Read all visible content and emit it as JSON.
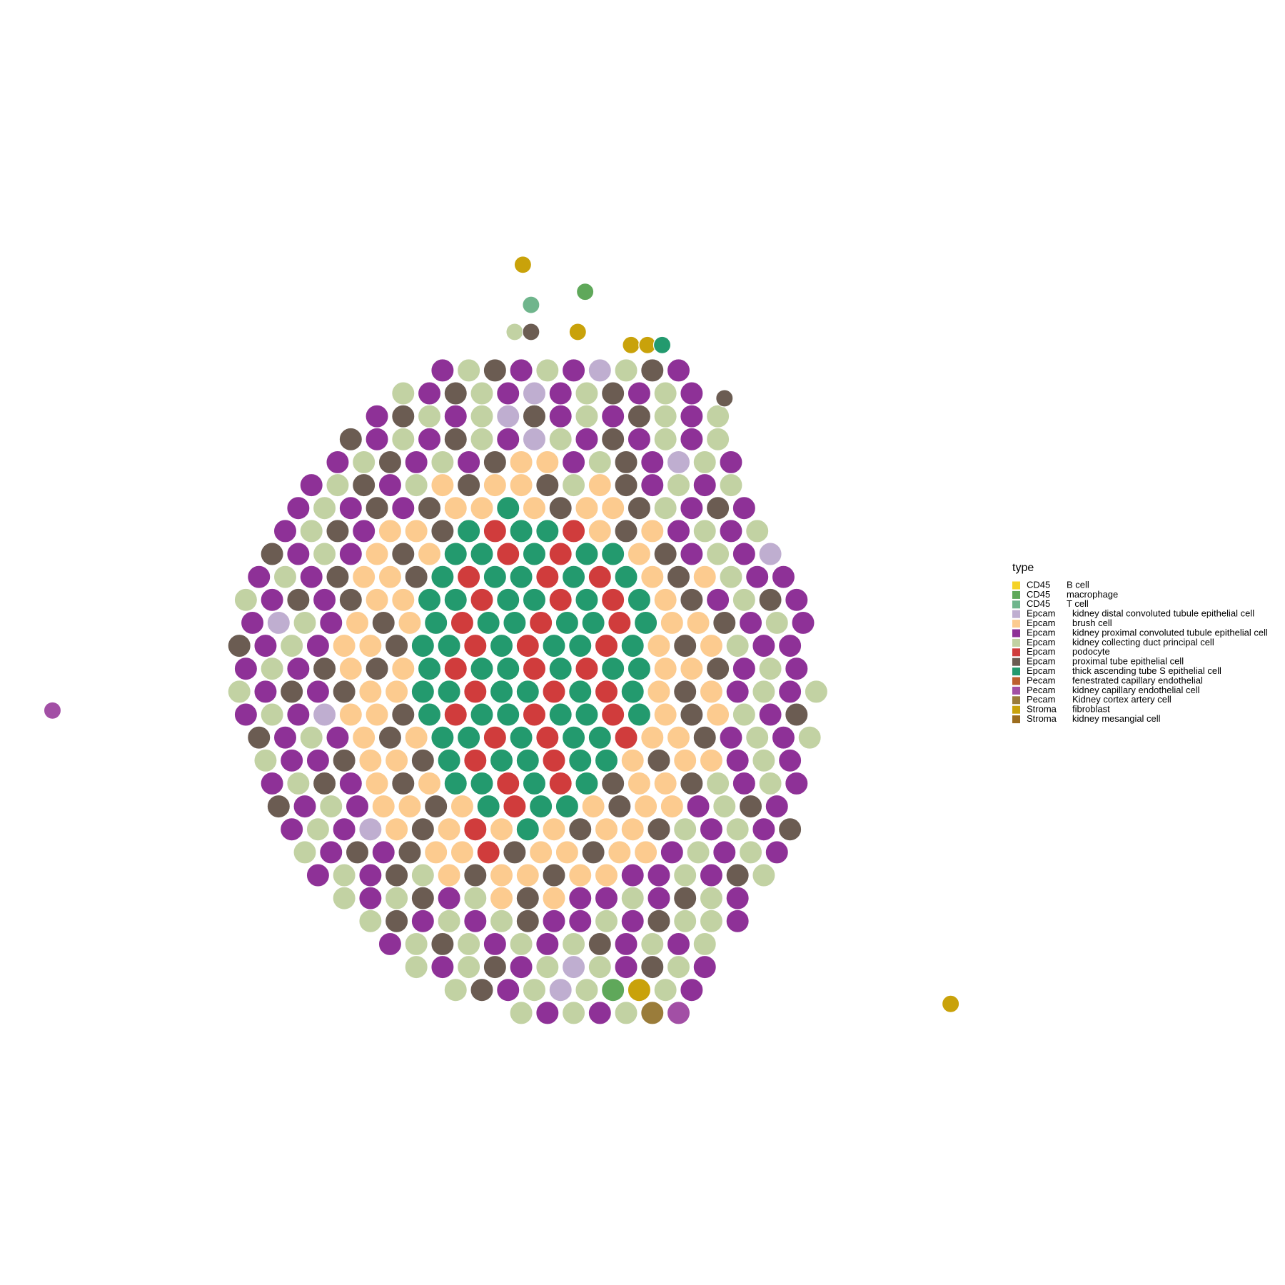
{
  "chart_data": {
    "type": "scatterpie",
    "legend_title": "type",
    "legend_position": "right",
    "types": [
      {
        "group": "CD45",
        "name": "B cell",
        "color": "#f5d327"
      },
      {
        "group": "CD45",
        "name": "macrophage",
        "color": "#5fa85a"
      },
      {
        "group": "CD45",
        "name": "T cell",
        "color": "#6fb58c"
      },
      {
        "group": "Epcam",
        "name": "kidney distal convoluted tubule epithelial cell",
        "color": "#bfaed0"
      },
      {
        "group": "Epcam",
        "name": "brush cell",
        "color": "#fccb8f"
      },
      {
        "group": "Epcam",
        "name": "kidney proximal convoluted tubule epithelial cell",
        "color": "#8e3197"
      },
      {
        "group": "Epcam",
        "name": "kidney collecting duct principal cell",
        "color": "#c2d2a3"
      },
      {
        "group": "Epcam",
        "name": "podocyte",
        "color": "#d03c3c"
      },
      {
        "group": "Epcam",
        "name": "proximal tube epithelial cell",
        "color": "#6b5c52"
      },
      {
        "group": "Epcam",
        "name": "thick ascending tube S epithelial cell",
        "color": "#239a6e"
      },
      {
        "group": "Pecam",
        "name": "fenestrated capillary endothelial",
        "color": "#bd5f2e"
      },
      {
        "group": "Pecam",
        "name": "kidney capillary endothelial cell",
        "color": "#a24fa5"
      },
      {
        "group": "Pecam",
        "name": "Kidney cortex artery cell",
        "color": "#9a7c3a"
      },
      {
        "group": "Stroma",
        "name": "fibroblast",
        "color": "#c9a20a"
      },
      {
        "group": "Stroma",
        "name": "kidney mesangial cell",
        "color": "#9c6d1e"
      }
    ],
    "spacing": 32,
    "rows": [
      {
        "y": 452,
        "x0": 540,
        "types": [
          5,
          6,
          8,
          5,
          6,
          5,
          3,
          6,
          8,
          5
        ]
      },
      {
        "y": 480,
        "x0": 492,
        "types": [
          6,
          5,
          8,
          6,
          5,
          3,
          5,
          6,
          8,
          5,
          6,
          5
        ]
      },
      {
        "y": 508,
        "x0": 460,
        "types": [
          5,
          8,
          6,
          5,
          6,
          3,
          8,
          5,
          6,
          5,
          8,
          6,
          5,
          6
        ]
      },
      {
        "y": 536,
        "x0": 428,
        "types": [
          8,
          5,
          6,
          5,
          8,
          6,
          5,
          3,
          6,
          5,
          8,
          5,
          6,
          5,
          6
        ]
      },
      {
        "y": 564,
        "x0": 412,
        "types": [
          5,
          6,
          8,
          5,
          6,
          5,
          8,
          4,
          4,
          5,
          6,
          8,
          5,
          3,
          6,
          5
        ]
      },
      {
        "y": 592,
        "x0": 380,
        "types": [
          5,
          6,
          8,
          5,
          6,
          4,
          8,
          4,
          4,
          8,
          6,
          4,
          8,
          5,
          6,
          5,
          6
        ]
      },
      {
        "y": 620,
        "x0": 364,
        "types": [
          5,
          6,
          5,
          8,
          5,
          8,
          4,
          4,
          9,
          4,
          8,
          4,
          4,
          8,
          6,
          5,
          8,
          5
        ]
      },
      {
        "y": 648,
        "x0": 348,
        "types": [
          5,
          6,
          8,
          5,
          4,
          4,
          8,
          9,
          7,
          9,
          9,
          7,
          4,
          8,
          4,
          5,
          6,
          5,
          6
        ]
      },
      {
        "y": 676,
        "x0": 332,
        "types": [
          8,
          5,
          6,
          5,
          4,
          8,
          4,
          9,
          9,
          7,
          9,
          7,
          9,
          9,
          4,
          8,
          5,
          6,
          5,
          3
        ]
      },
      {
        "y": 704,
        "x0": 316,
        "types": [
          5,
          6,
          5,
          8,
          4,
          4,
          8,
          9,
          7,
          9,
          9,
          7,
          9,
          7,
          9,
          4,
          8,
          4,
          6,
          5,
          5
        ]
      },
      {
        "y": 732,
        "x0": 300,
        "types": [
          6,
          5,
          8,
          5,
          8,
          4,
          4,
          9,
          9,
          7,
          9,
          9,
          7,
          9,
          7,
          9,
          4,
          8,
          5,
          6,
          8,
          5
        ]
      },
      {
        "y": 760,
        "x0": 308,
        "types": [
          5,
          3,
          6,
          5,
          4,
          8,
          4,
          9,
          7,
          9,
          9,
          7,
          9,
          9,
          7,
          9,
          4,
          4,
          8,
          5,
          6,
          5
        ]
      },
      {
        "y": 788,
        "x0": 292,
        "types": [
          8,
          5,
          6,
          5,
          4,
          4,
          8,
          9,
          9,
          7,
          9,
          7,
          9,
          9,
          7,
          9,
          4,
          8,
          4,
          6,
          5,
          5
        ]
      },
      {
        "y": 816,
        "x0": 300,
        "types": [
          5,
          6,
          5,
          8,
          4,
          8,
          4,
          9,
          7,
          9,
          9,
          7,
          9,
          7,
          9,
          9,
          4,
          4,
          8,
          5,
          6,
          5
        ]
      },
      {
        "y": 844,
        "x0": 292,
        "types": [
          6,
          5,
          8,
          5,
          8,
          4,
          4,
          9,
          9,
          7,
          9,
          9,
          7,
          9,
          7,
          9,
          4,
          8,
          4,
          5,
          6,
          5,
          6
        ]
      },
      {
        "y": 872,
        "x0": 300,
        "types": [
          5,
          6,
          5,
          3,
          4,
          4,
          8,
          9,
          7,
          9,
          9,
          7,
          9,
          9,
          7,
          9,
          4,
          8,
          4,
          6,
          5,
          8
        ]
      },
      {
        "y": 900,
        "x0": 316,
        "types": [
          8,
          5,
          6,
          5,
          4,
          8,
          4,
          9,
          9,
          7,
          9,
          7,
          9,
          9,
          7,
          4,
          4,
          8,
          5,
          6,
          5,
          6
        ]
      },
      {
        "y": 928,
        "x0": 324,
        "types": [
          6,
          5,
          5,
          8,
          4,
          4,
          8,
          9,
          7,
          9,
          9,
          7,
          9,
          9,
          4,
          8,
          4,
          4,
          5,
          6,
          5
        ]
      },
      {
        "y": 956,
        "x0": 332,
        "types": [
          5,
          6,
          8,
          5,
          4,
          8,
          4,
          9,
          9,
          7,
          9,
          7,
          9,
          8,
          4,
          4,
          8,
          6,
          5,
          6,
          5
        ]
      },
      {
        "y": 984,
        "x0": 340,
        "types": [
          8,
          5,
          6,
          5,
          4,
          4,
          8,
          4,
          9,
          7,
          9,
          9,
          4,
          8,
          4,
          4,
          5,
          6,
          8,
          5
        ]
      },
      {
        "y": 1012,
        "x0": 356,
        "types": [
          5,
          6,
          5,
          3,
          4,
          8,
          4,
          7,
          4,
          9,
          4,
          8,
          4,
          4,
          8,
          6,
          5,
          6,
          5,
          8
        ]
      },
      {
        "y": 1040,
        "x0": 372,
        "types": [
          6,
          5,
          8,
          5,
          8,
          4,
          4,
          7,
          8,
          4,
          4,
          8,
          4,
          4,
          5,
          6,
          5,
          6,
          5
        ]
      },
      {
        "y": 1068,
        "x0": 388,
        "types": [
          5,
          6,
          5,
          8,
          6,
          4,
          8,
          4,
          4,
          8,
          4,
          4,
          5,
          5,
          6,
          5,
          8,
          6
        ]
      },
      {
        "y": 1096,
        "x0": 420,
        "types": [
          6,
          5,
          6,
          8,
          5,
          6,
          4,
          8,
          4,
          5,
          5,
          6,
          5,
          8,
          6,
          5
        ]
      },
      {
        "y": 1124,
        "x0": 452,
        "types": [
          6,
          8,
          5,
          6,
          5,
          6,
          8,
          5,
          5,
          6,
          5,
          8,
          6,
          6,
          5
        ]
      },
      {
        "y": 1152,
        "x0": 476,
        "types": [
          5,
          6,
          8,
          6,
          5,
          6,
          5,
          6,
          8,
          5,
          6,
          5,
          6
        ]
      },
      {
        "y": 1180,
        "x0": 508,
        "types": [
          6,
          5,
          6,
          8,
          5,
          6,
          3,
          6,
          5,
          8,
          6,
          5
        ]
      },
      {
        "y": 1208,
        "x0": 556,
        "types": [
          6,
          8,
          5,
          6,
          3,
          6,
          1,
          13,
          6,
          5
        ]
      },
      {
        "y": 1236,
        "x0": 636,
        "types": [
          6,
          5,
          6,
          5,
          6,
          12,
          11
        ]
      }
    ],
    "extras": {
      "x": [
        64,
        1160,
        638,
        648,
        714,
        628,
        648,
        705,
        770,
        790,
        808,
        884
      ],
      "y": [
        867,
        1225,
        323,
        372,
        356,
        405,
        405,
        405,
        421,
        421,
        421,
        486
      ],
      "types": [
        11,
        13,
        13,
        2,
        1,
        6,
        8,
        13,
        13,
        13,
        9,
        8
      ]
    }
  }
}
